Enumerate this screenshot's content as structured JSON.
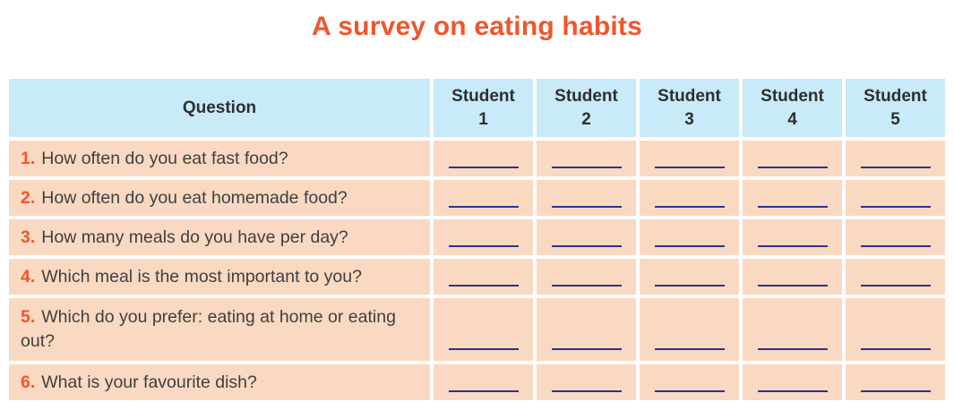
{
  "title": "A survey on eating habits",
  "colors": {
    "title_text": "#f2542d",
    "header_bg": "#c8eaf9",
    "row_bg": "#fad9c2",
    "question_number": "#f2542d",
    "body_text": "#3f4040",
    "blank_line": "#2e3192",
    "page_bg": "#ffffff"
  },
  "table": {
    "header": {
      "question": "Question",
      "students": [
        "Student\n1",
        "Student\n2",
        "Student\n3",
        "Student\n4",
        "Student\n5"
      ]
    },
    "rows": [
      {
        "number": "1.",
        "text": "How often do you eat fast food?"
      },
      {
        "number": "2.",
        "text": "How often do you eat homemade food?"
      },
      {
        "number": "3.",
        "text": "How many meals do you have per day?"
      },
      {
        "number": "4.",
        "text": "Which meal is the most important to you?"
      },
      {
        "number": "5.",
        "text": "Which do you prefer: eating at home or eating out?"
      },
      {
        "number": "6.",
        "text": "What is your favourite dish?"
      }
    ],
    "blanks_per_row": 5
  }
}
